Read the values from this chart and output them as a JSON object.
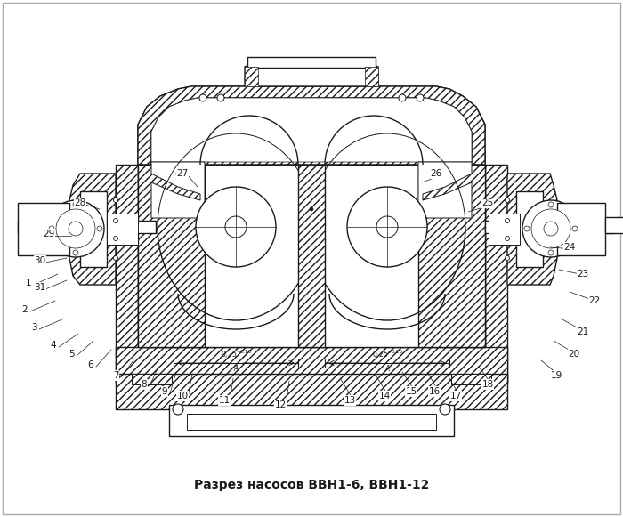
{
  "title": "Разрез насосов ВВН1-6, ВВН1-12",
  "title_fontsize": 10,
  "bg_color": "#ffffff",
  "line_color": "#1a1a1a",
  "fig_width": 7.0,
  "fig_height": 5.81,
  "label_coords": {
    "1": [
      32,
      318,
      65,
      308
    ],
    "2": [
      28,
      348,
      62,
      338
    ],
    "3": [
      38,
      368,
      72,
      358
    ],
    "4": [
      60,
      388,
      88,
      375
    ],
    "5": [
      80,
      398,
      105,
      383
    ],
    "6": [
      102,
      410,
      125,
      393
    ],
    "7": [
      130,
      422,
      150,
      405
    ],
    "8": [
      162,
      432,
      178,
      412
    ],
    "9": [
      185,
      440,
      198,
      418
    ],
    "10": [
      205,
      445,
      216,
      420
    ],
    "11": [
      252,
      450,
      262,
      425
    ],
    "12": [
      315,
      455,
      325,
      428
    ],
    "13": [
      393,
      450,
      382,
      425
    ],
    "14": [
      432,
      445,
      421,
      420
    ],
    "15": [
      462,
      440,
      452,
      418
    ],
    "16": [
      488,
      440,
      480,
      418
    ],
    "17": [
      512,
      445,
      502,
      420
    ],
    "18": [
      548,
      432,
      538,
      412
    ],
    "19": [
      625,
      422,
      608,
      405
    ],
    "20": [
      645,
      398,
      622,
      383
    ],
    "21": [
      655,
      373,
      630,
      358
    ],
    "22": [
      668,
      338,
      640,
      328
    ],
    "23": [
      655,
      308,
      628,
      303
    ],
    "24": [
      640,
      278,
      618,
      278
    ],
    "25": [
      548,
      228,
      526,
      238
    ],
    "26": [
      490,
      195,
      474,
      205
    ],
    "27": [
      205,
      195,
      222,
      210
    ],
    "28": [
      90,
      228,
      112,
      235
    ],
    "29": [
      55,
      263,
      80,
      265
    ],
    "30": [
      45,
      293,
      75,
      290
    ],
    "31": [
      45,
      323,
      75,
      315
    ]
  }
}
